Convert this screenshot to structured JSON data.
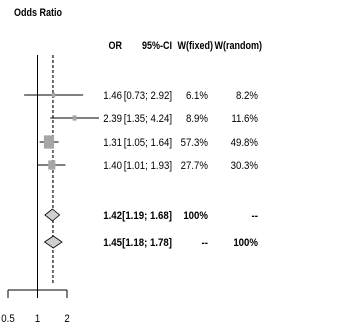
{
  "chart_data": {
    "type": "scatter",
    "title": "Odds Ratio",
    "x_scale": "log",
    "axis_range": [
      0.5,
      2
    ],
    "x_ticks": [
      0.5,
      1,
      2
    ],
    "reference_line": 1,
    "columns": {
      "or": "OR",
      "ci": "95%-CI",
      "w_fixed": "W(fixed)",
      "w_random": "W(random)"
    },
    "studies": [
      {
        "or": 1.46,
        "lower": 0.73,
        "upper": 2.92,
        "weight_fixed": 6.1,
        "weight_random": 8.2,
        "or_text": "1.46",
        "ci_text": "[0.73; 2.92]",
        "w_fixed_text": "6.1%",
        "w_random_text": "8.2%"
      },
      {
        "or": 2.39,
        "lower": 1.35,
        "upper": 4.24,
        "weight_fixed": 8.9,
        "weight_random": 11.6,
        "or_text": "2.39",
        "ci_text": "[1.35; 4.24]",
        "w_fixed_text": "8.9%",
        "w_random_text": "11.6%"
      },
      {
        "or": 1.31,
        "lower": 1.05,
        "upper": 1.64,
        "weight_fixed": 57.3,
        "weight_random": 49.8,
        "or_text": "1.31",
        "ci_text": "[1.05; 1.64]",
        "w_fixed_text": "57.3%",
        "w_random_text": "49.8%"
      },
      {
        "or": 1.4,
        "lower": 1.01,
        "upper": 1.93,
        "weight_fixed": 27.7,
        "weight_random": 30.3,
        "or_text": "1.40",
        "ci_text": "[1.01; 1.93]",
        "w_fixed_text": "27.7%",
        "w_random_text": "30.3%"
      }
    ],
    "summaries": [
      {
        "or": 1.42,
        "lower": 1.19,
        "upper": 1.68,
        "or_text": "1.42",
        "ci_text": "[1.19; 1.68]",
        "w_fixed_text": "100%",
        "w_random_text": "--"
      },
      {
        "or": 1.45,
        "lower": 1.18,
        "upper": 1.78,
        "or_text": "1.45",
        "ci_text": "[1.18; 1.78]",
        "w_fixed_text": "--",
        "w_random_text": "100%"
      }
    ],
    "colors": {
      "line": "#000000",
      "square": "#a6a6a6",
      "diamond": "#cfcfcf",
      "summary_line": "#444444"
    }
  }
}
